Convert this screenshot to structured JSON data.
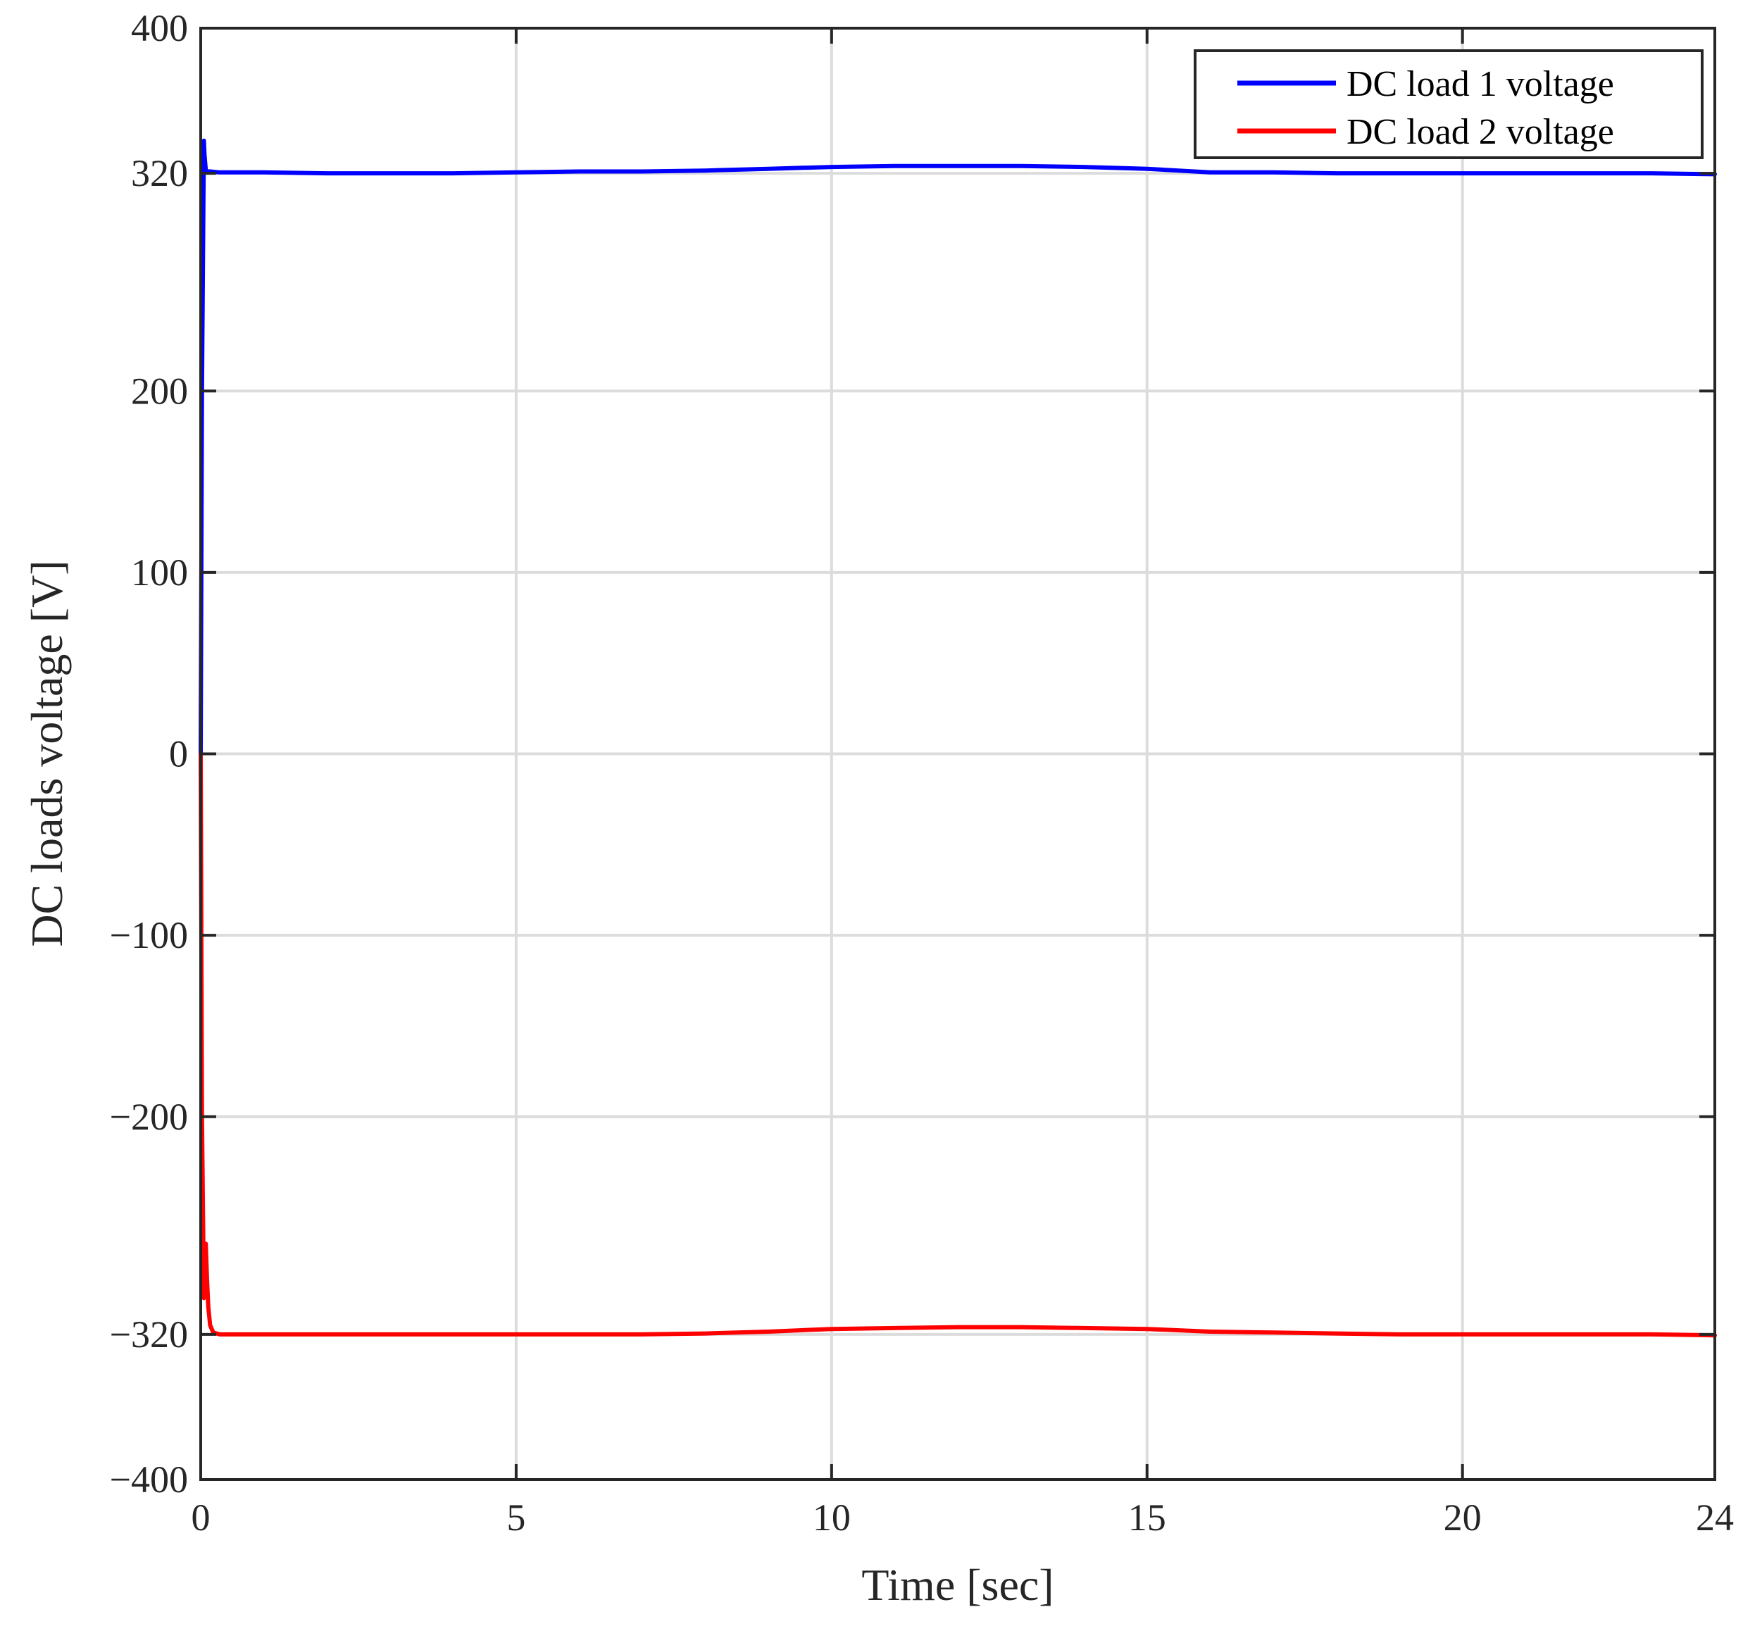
{
  "chart_data": {
    "type": "line",
    "title": "",
    "xlabel": "Time [sec]",
    "ylabel": "DC loads voltage [V]",
    "xlim": [
      0,
      24
    ],
    "ylim": [
      -400,
      400
    ],
    "xticks": [
      0,
      5,
      10,
      15,
      20,
      24
    ],
    "xtick_labels": [
      "0",
      "5",
      "10",
      "15",
      "20",
      "24"
    ],
    "yticks": [
      400,
      320,
      200,
      100,
      0,
      -100,
      -200,
      -320,
      -400
    ],
    "ytick_labels": [
      "400",
      "320",
      "200",
      "100",
      "0",
      "−100",
      "−200",
      "−320",
      "−400"
    ],
    "grid": true,
    "legend_position": "top-right",
    "series": [
      {
        "name": "DC load 1 voltage",
        "color": "#0000ff",
        "x": [
          0,
          0.02,
          0.05,
          0.06,
          0.08,
          0.1,
          0.15,
          0.3,
          1,
          2,
          3,
          4,
          5,
          6,
          7,
          8,
          9,
          10,
          11,
          12,
          13,
          14,
          15,
          16,
          17,
          18,
          19,
          20,
          21,
          22,
          23,
          24
        ],
        "y": [
          0,
          200,
          338,
          330,
          322,
          321,
          321,
          320.5,
          320.5,
          320,
          320,
          320,
          320.5,
          321,
          321,
          321.5,
          322.5,
          323.5,
          324,
          324,
          324,
          323.5,
          322.5,
          320.5,
          320.5,
          320,
          320,
          320,
          320,
          320,
          320,
          319.5
        ]
      },
      {
        "name": "DC load 2 voltage",
        "color": "#ff0000",
        "x": [
          0,
          0.02,
          0.05,
          0.06,
          0.08,
          0.1,
          0.12,
          0.15,
          0.2,
          0.3,
          1,
          2,
          3,
          4,
          5,
          6,
          7,
          8,
          9,
          10,
          11,
          12,
          13,
          14,
          15,
          16,
          17,
          18,
          19,
          20,
          21,
          22,
          23,
          24
        ],
        "y": [
          0,
          -200,
          -300,
          -290,
          -270,
          -290,
          -305,
          -315,
          -319,
          -320,
          -320,
          -320,
          -320,
          -320,
          -320,
          -320,
          -320,
          -319.5,
          -318.5,
          -317,
          -316.5,
          -316,
          -316,
          -316.5,
          -317,
          -318.5,
          -319,
          -319.5,
          -320,
          -320,
          -320,
          -320,
          -320,
          -320.5
        ]
      }
    ]
  }
}
